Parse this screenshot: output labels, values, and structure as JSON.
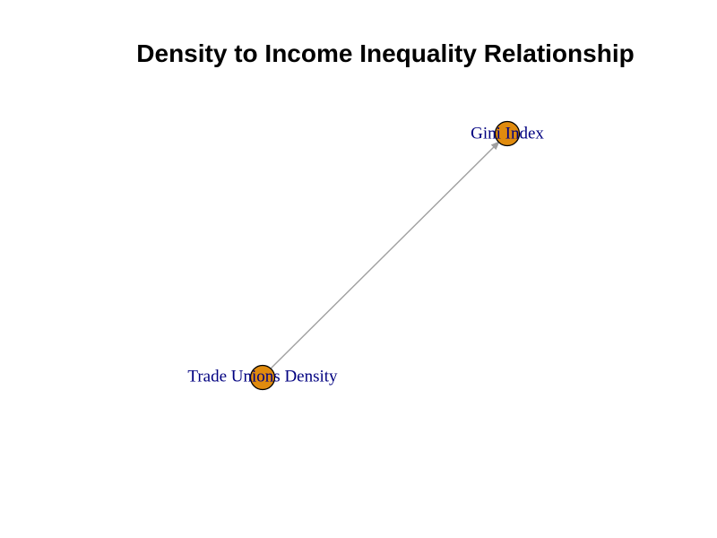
{
  "title": "Density to Income Inequality Relationship",
  "colors": {
    "node_fill": "#E08B0E",
    "node_stroke": "#000000",
    "label": "#000080",
    "edge": "#A0A0A0",
    "background": "#FFFFFF"
  },
  "nodes": [
    {
      "id": "trade_unions_density",
      "label": "Trade Unions Density"
    },
    {
      "id": "gini_index",
      "label": "Gini Index"
    }
  ],
  "edges": [
    {
      "from": "trade_unions_density",
      "to": "gini_index",
      "directed": true
    }
  ]
}
